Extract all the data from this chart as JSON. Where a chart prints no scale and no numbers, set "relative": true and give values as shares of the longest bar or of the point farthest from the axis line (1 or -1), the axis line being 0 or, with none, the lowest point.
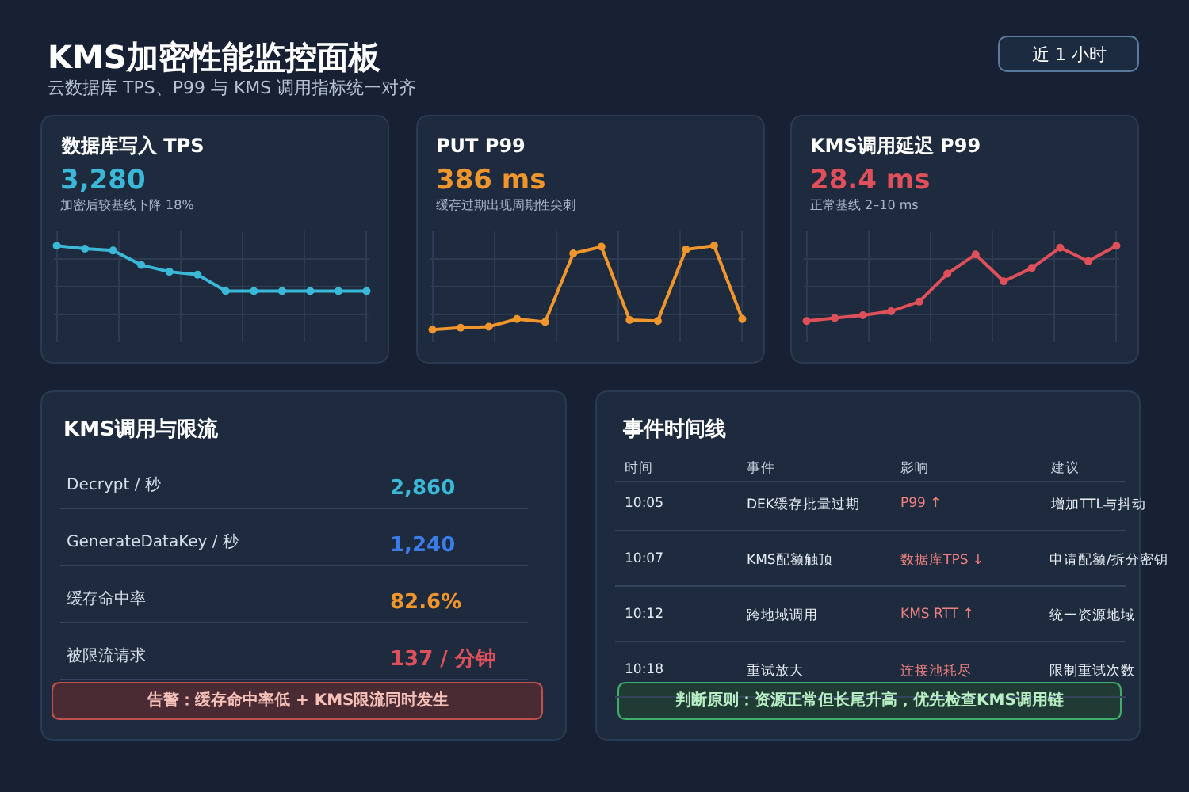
{
  "chart_data": [
    {
      "type": "other",
      "title": "KMS加密性能监控面板",
      "subtitle": "云数据库 TPS、P99 与 KMS 调用指标统一对齐",
      "annotations": [
        "近 1 小时"
      ]
    },
    {
      "type": "line",
      "title": "数据库写入 TPS",
      "subtitle": "加密后较基线下降 18%",
      "annotations": [
        "3,280"
      ],
      "categories": [
        null,
        null,
        null,
        null,
        null,
        null,
        null,
        null,
        null,
        null,
        null,
        null
      ],
      "values": [
        1,
        0.97,
        0.95,
        0.8,
        0.73,
        0.7,
        0.53,
        0.53,
        0.53,
        0.53,
        0.53,
        0.53
      ],
      "color": "#3bb8d8",
      "relative": true,
      "marker": "circle",
      "grid": true
    },
    {
      "type": "line",
      "title": "PUT P99",
      "subtitle": "缓存过期出现周期性尖刺",
      "annotations": [
        "386 ms"
      ],
      "categories": [
        null,
        null,
        null,
        null,
        null,
        null,
        null,
        null,
        null,
        null,
        null,
        null
      ],
      "values": [
        0.13,
        0.15,
        0.16,
        0.24,
        0.21,
        0.92,
        0.99,
        0.23,
        0.22,
        0.96,
        1,
        0.24
      ],
      "color": "#f0962c",
      "relative": true,
      "marker": "circle",
      "grid": true
    },
    {
      "type": "line",
      "title": "KMS调用延迟 P99",
      "subtitle": "正常基线 2–10 ms",
      "annotations": [
        "28.4 ms"
      ],
      "categories": [
        null,
        null,
        null,
        null,
        null,
        null,
        null,
        null,
        null,
        null,
        null,
        null
      ],
      "values": [
        0.22,
        0.25,
        0.28,
        0.32,
        0.42,
        0.71,
        0.91,
        0.63,
        0.77,
        0.98,
        0.84,
        1
      ],
      "color": "#e0505a",
      "relative": true,
      "marker": "circle",
      "grid": true
    },
    {
      "type": "other",
      "title": "KMS调用与限流",
      "annotations": [
        "Decrypt / 秒",
        "2,860",
        "GenerateDataKey / 秒",
        "1,240",
        "缓存命中率",
        "82.6%",
        "被限流请求",
        "137 / 分钟",
        "告警：缓存命中率低 + KMS限流同时发生"
      ]
    },
    {
      "type": "other",
      "title": "事件时间线",
      "annotations": [
        "时间",
        "事件",
        "影响",
        "建议",
        "10:05",
        "DEK缓存批量过期",
        "P99 ↑",
        "增加TTL与抖动",
        "10:07",
        "KMS配额触顶",
        "数据库TPS ↓",
        "申请配额/拆分密钥",
        "10:12",
        "跨地域调用",
        "KMS RTT ↑",
        "统一资源地域",
        "10:18",
        "重试放大",
        "连接池耗尽",
        "限制重试次数",
        "判断原则：资源正常但长尾升高，优先检查KMS调用链"
      ]
    }
  ]
}
